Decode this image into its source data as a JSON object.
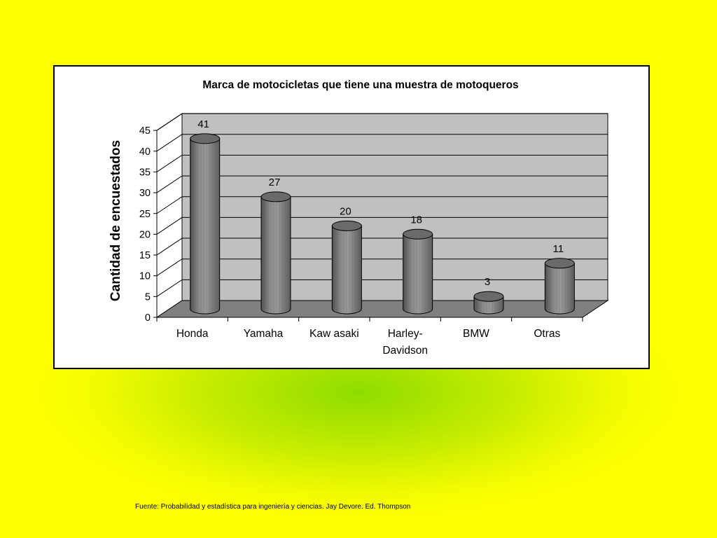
{
  "slide": {
    "source_note": "Fuente: Probabilidad y estadística para ingeniería y ciencias. Jay Devore. Ed. Thompson"
  },
  "colors": {
    "slide_background": "#ffff00",
    "slide_glow": "#8fdc00",
    "chart_background": "#ffffff",
    "plot_back_wall": "#c0c0c0",
    "plot_floor": "#808080",
    "bar_fill": "#8c8c8c"
  },
  "chart_data": {
    "type": "bar",
    "style": "3d-cylinder",
    "title": "Marca de motocicletas que tiene una muestra de motoqueros",
    "xlabel": "",
    "ylabel": "Cantidad de encuestados",
    "categories": [
      [
        "Honda"
      ],
      [
        "Yamaha"
      ],
      [
        "Kaw asaki"
      ],
      [
        "Harley-",
        "Davidson"
      ],
      [
        "BMW"
      ],
      [
        "Otras"
      ]
    ],
    "values": [
      41,
      27,
      20,
      18,
      3,
      11
    ],
    "data_labels": [
      "41",
      "27",
      "20",
      "18",
      "3",
      "11"
    ],
    "ylim": [
      0,
      45
    ],
    "yticks": [
      0,
      5,
      10,
      15,
      20,
      25,
      30,
      35,
      40,
      45
    ],
    "ytick_labels": [
      "0",
      "5",
      "10",
      "15",
      "20",
      "25",
      "30",
      "35",
      "40",
      "45"
    ],
    "grid": true,
    "legend": "none"
  }
}
